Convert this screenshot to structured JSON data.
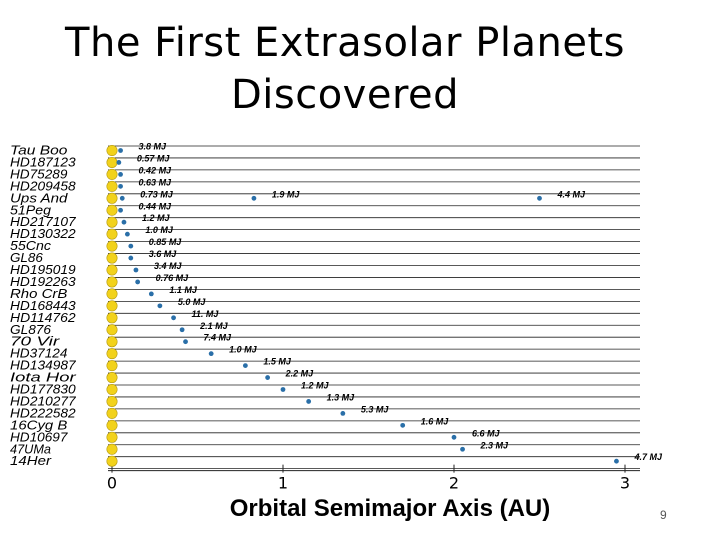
{
  "slide": {
    "title_line1": "The First Extrasolar Planets",
    "title_line2": "Discovered",
    "page_number": "9"
  },
  "chart_data": {
    "type": "scatter",
    "xlabel": "Orbital Semimajor Axis  (AU)",
    "x_ticks": [
      "0",
      "1",
      "2",
      "3"
    ],
    "xlim": [
      0,
      3.2
    ],
    "grid": true,
    "stars": [
      {
        "name": "Tau Boo",
        "planets": [
          {
            "a": 0.05,
            "mass": "3.8 MJ"
          }
        ]
      },
      {
        "name": "HD187123",
        "planets": [
          {
            "a": 0.04,
            "mass": "0.57 MJ"
          }
        ]
      },
      {
        "name": "HD75289",
        "planets": [
          {
            "a": 0.05,
            "mass": "0.42 MJ"
          }
        ]
      },
      {
        "name": "HD209458",
        "planets": [
          {
            "a": 0.05,
            "mass": "0.63 MJ"
          }
        ]
      },
      {
        "name": "Ups And",
        "planets": [
          {
            "a": 0.06,
            "mass": "0.73 MJ"
          },
          {
            "a": 0.83,
            "mass": "1.9 MJ"
          },
          {
            "a": 2.5,
            "mass": "4.4 MJ"
          }
        ]
      },
      {
        "name": "51Peg",
        "planets": [
          {
            "a": 0.05,
            "mass": "0.44 MJ"
          }
        ]
      },
      {
        "name": "HD217107",
        "planets": [
          {
            "a": 0.07,
            "mass": "1.2 MJ"
          }
        ]
      },
      {
        "name": "HD130322",
        "planets": [
          {
            "a": 0.09,
            "mass": "1.0 MJ"
          }
        ]
      },
      {
        "name": "55Cnc",
        "planets": [
          {
            "a": 0.11,
            "mass": "0.85 MJ"
          }
        ]
      },
      {
        "name": "GL86",
        "planets": [
          {
            "a": 0.11,
            "mass": "3.6 MJ"
          }
        ]
      },
      {
        "name": "HD195019",
        "planets": [
          {
            "a": 0.14,
            "mass": "3.4 MJ"
          }
        ]
      },
      {
        "name": "HD192263",
        "planets": [
          {
            "a": 0.15,
            "mass": "0.76 MJ"
          }
        ]
      },
      {
        "name": "Rho CrB",
        "planets": [
          {
            "a": 0.23,
            "mass": "1.1 MJ"
          }
        ]
      },
      {
        "name": "HD168443",
        "planets": [
          {
            "a": 0.28,
            "mass": "5.0 MJ"
          }
        ]
      },
      {
        "name": "HD114762",
        "planets": [
          {
            "a": 0.36,
            "mass": "11. MJ"
          }
        ]
      },
      {
        "name": "GL876",
        "planets": [
          {
            "a": 0.41,
            "mass": "2.1 MJ"
          }
        ]
      },
      {
        "name": "70 Vir",
        "planets": [
          {
            "a": 0.43,
            "mass": "7.4 MJ"
          }
        ]
      },
      {
        "name": "HD37124",
        "planets": [
          {
            "a": 0.58,
            "mass": "1.0 MJ"
          }
        ]
      },
      {
        "name": "HD134987",
        "planets": [
          {
            "a": 0.78,
            "mass": "1.5 MJ"
          }
        ]
      },
      {
        "name": "Iota Hor",
        "planets": [
          {
            "a": 0.91,
            "mass": "2.2 MJ"
          }
        ]
      },
      {
        "name": "HD177830",
        "planets": [
          {
            "a": 1.0,
            "mass": "1.2 MJ"
          }
        ]
      },
      {
        "name": "HD210277",
        "planets": [
          {
            "a": 1.15,
            "mass": "1.3 MJ"
          }
        ]
      },
      {
        "name": "HD222582",
        "planets": [
          {
            "a": 1.35,
            "mass": "5.3 MJ"
          }
        ]
      },
      {
        "name": "16Cyg B",
        "planets": [
          {
            "a": 1.7,
            "mass": "1.6 MJ"
          }
        ]
      },
      {
        "name": "HD10697",
        "planets": [
          {
            "a": 2.0,
            "mass": "6.6 MJ"
          }
        ]
      },
      {
        "name": "47UMa",
        "planets": [
          {
            "a": 2.05,
            "mass": "2.3 MJ"
          }
        ]
      },
      {
        "name": "14Her",
        "planets": [
          {
            "a": 2.95,
            "mass": "4.7 MJ"
          }
        ]
      }
    ]
  },
  "colors": {
    "star": "#f2d21b",
    "star_edge": "#b59a10",
    "planet": "#2a6fa8",
    "grid": "#222222",
    "axis_label": "#000000"
  }
}
